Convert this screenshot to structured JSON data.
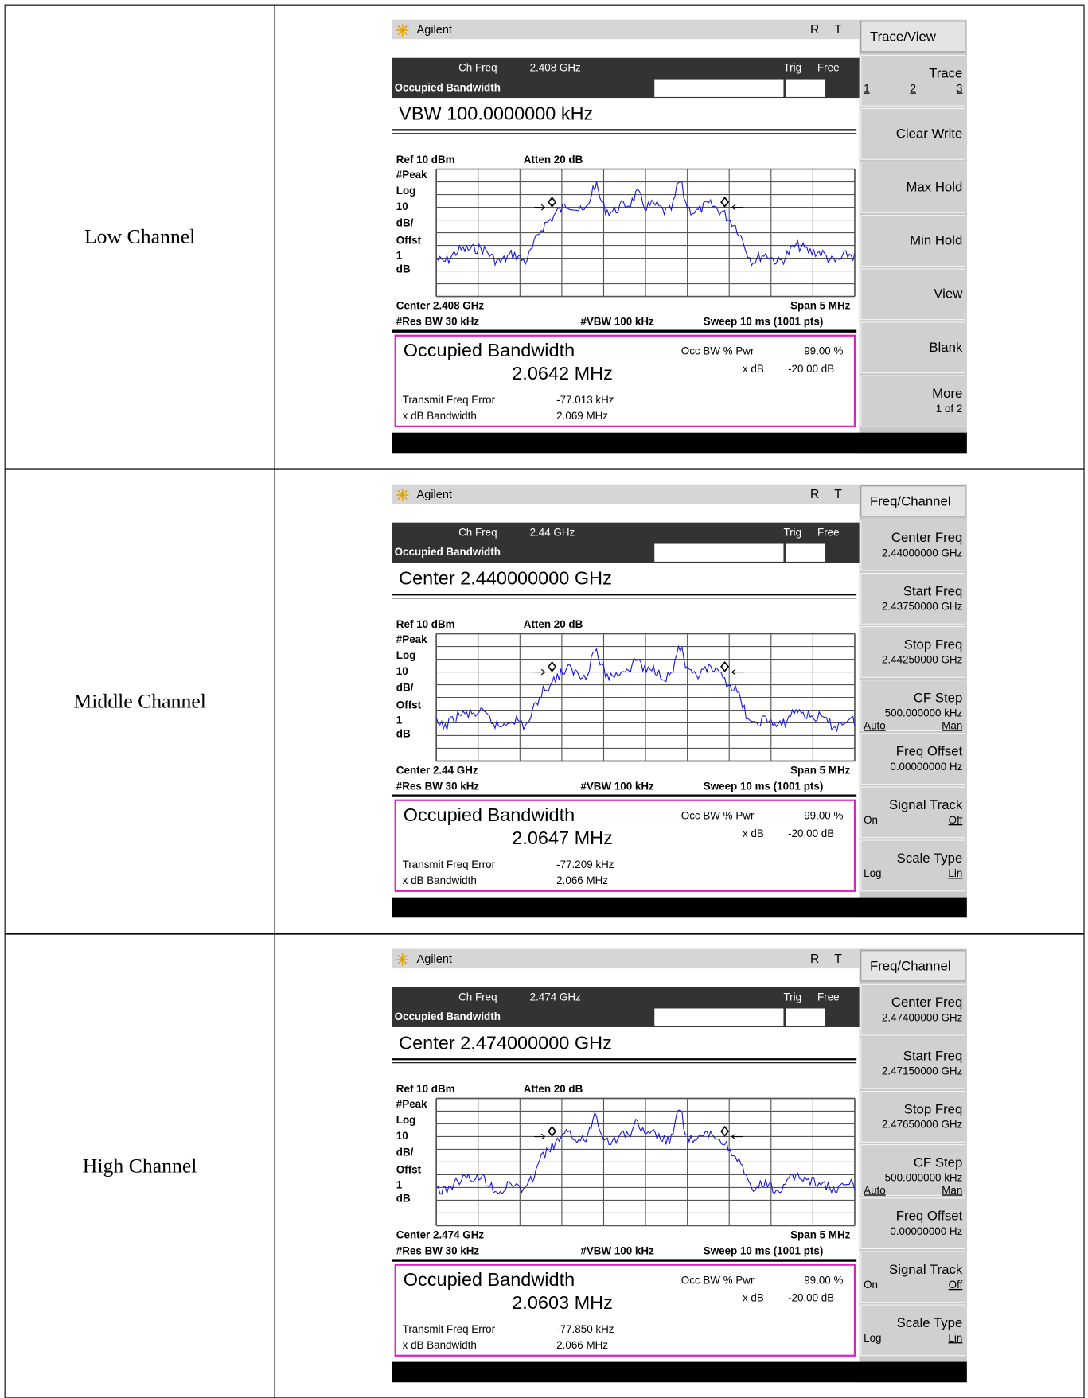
{
  "rows": [
    {
      "label": "Low Channel",
      "screen": {
        "brand": "Agilent",
        "status": [
          "R",
          "T"
        ],
        "menu": "Trace/View",
        "ch_freq_label": "Ch Freq",
        "ch_freq": "2.408 GHz",
        "trig": "Trig",
        "free": "Free",
        "mode": "Occupied Bandwidth",
        "active": "VBW 100.0000000 kHz",
        "ref": "Ref 10 dBm",
        "atten": "Atten 20 dB",
        "scale": [
          "#Peak",
          "Log",
          "10",
          "dB/",
          "Offst",
          "1",
          "dB"
        ],
        "center": "Center 2.408 GHz",
        "span": "Span 5 MHz",
        "res_bw": "#Res BW 30 kHz",
        "vbw": "#VBW 100 kHz",
        "sweep": "Sweep 10 ms (1001 pts)",
        "result": {
          "title": "Occupied Bandwidth",
          "value": "2.0642 MHz",
          "occ_label": "Occ BW % Pwr",
          "occ_value": "99.00 %",
          "xdb_label": "x dB",
          "xdb_value": "-20.00 dB",
          "tfe_label": "Transmit Freq Error",
          "tfe_value": "-77.013 kHz",
          "xbw_label": "x dB Bandwidth",
          "xbw_value": "2.069 MHz"
        },
        "softkeys": [
          {
            "label": "Trace",
            "options": [
              "1",
              "2",
              "3"
            ]
          },
          {
            "label": "Clear Write"
          },
          {
            "label": "Max Hold"
          },
          {
            "label": "Min Hold"
          },
          {
            "label": "View"
          },
          {
            "label": "Blank"
          },
          {
            "label": "More",
            "value": "1 of 2"
          }
        ]
      }
    },
    {
      "label": "Middle Channel",
      "screen": {
        "brand": "Agilent",
        "status": [
          "R",
          "T"
        ],
        "menu": "Freq/Channel",
        "ch_freq_label": "Ch Freq",
        "ch_freq": "2.44 GHz",
        "trig": "Trig",
        "free": "Free",
        "mode": "Occupied Bandwidth",
        "active": "Center 2.440000000 GHz",
        "ref": "Ref 10 dBm",
        "atten": "Atten 20 dB",
        "scale": [
          "#Peak",
          "Log",
          "10",
          "dB/",
          "Offst",
          "1",
          "dB"
        ],
        "center": "Center 2.44 GHz",
        "span": "Span 5 MHz",
        "res_bw": "#Res BW 30 kHz",
        "vbw": "#VBW 100 kHz",
        "sweep": "Sweep 10 ms (1001 pts)",
        "result": {
          "title": "Occupied Bandwidth",
          "value": "2.0647 MHz",
          "occ_label": "Occ BW % Pwr",
          "occ_value": "99.00 %",
          "xdb_label": "x dB",
          "xdb_value": "-20.00 dB",
          "tfe_label": "Transmit Freq Error",
          "tfe_value": "-77.209 kHz",
          "xbw_label": "x dB Bandwidth",
          "xbw_value": "2.066 MHz"
        },
        "softkeys": [
          {
            "label": "Center Freq",
            "value": "2.44000000 GHz"
          },
          {
            "label": "Start Freq",
            "value": "2.43750000 GHz"
          },
          {
            "label": "Stop Freq",
            "value": "2.44250000 GHz"
          },
          {
            "label": "CF Step",
            "value": "500.000000 kHz",
            "options": [
              "Auto",
              "Man"
            ]
          },
          {
            "label": "Freq Offset",
            "value": "0.00000000  Hz"
          },
          {
            "label": "Signal Track",
            "options": [
              "On",
              "Off"
            ]
          },
          {
            "label": "Scale Type",
            "options": [
              "Log",
              "Lin"
            ]
          }
        ]
      }
    },
    {
      "label": "High Channel",
      "screen": {
        "brand": "Agilent",
        "status": [
          "R",
          "T"
        ],
        "menu": "Freq/Channel",
        "ch_freq_label": "Ch Freq",
        "ch_freq": "2.474 GHz",
        "trig": "Trig",
        "free": "Free",
        "mode": "Occupied Bandwidth",
        "active": "Center 2.474000000 GHz",
        "ref": "Ref 10 dBm",
        "atten": "Atten 20 dB",
        "scale": [
          "#Peak",
          "Log",
          "10",
          "dB/",
          "Offst",
          "1",
          "dB"
        ],
        "center": "Center 2.474 GHz",
        "span": "Span 5 MHz",
        "res_bw": "#Res BW 30 kHz",
        "vbw": "#VBW 100 kHz",
        "sweep": "Sweep 10 ms (1001 pts)",
        "result": {
          "title": "Occupied Bandwidth",
          "value": "2.0603 MHz",
          "occ_label": "Occ BW % Pwr",
          "occ_value": "99.00 %",
          "xdb_label": "x dB",
          "xdb_value": "-20.00 dB",
          "tfe_label": "Transmit Freq Error",
          "tfe_value": "-77.850 kHz",
          "xbw_label": "x dB Bandwidth",
          "xbw_value": "2.066 MHz"
        },
        "softkeys": [
          {
            "label": "Center Freq",
            "value": "2.47400000 GHz"
          },
          {
            "label": "Start Freq",
            "value": "2.47150000 GHz"
          },
          {
            "label": "Stop Freq",
            "value": "2.47650000 GHz"
          },
          {
            "label": "CF Step",
            "value": "500.000000 kHz",
            "options": [
              "Auto",
              "Man"
            ]
          },
          {
            "label": "Freq Offset",
            "value": "0.00000000  Hz"
          },
          {
            "label": "Signal Track",
            "options": [
              "On",
              "Off"
            ]
          },
          {
            "label": "Scale Type",
            "options": [
              "Log",
              "Lin"
            ]
          }
        ]
      }
    }
  ]
}
